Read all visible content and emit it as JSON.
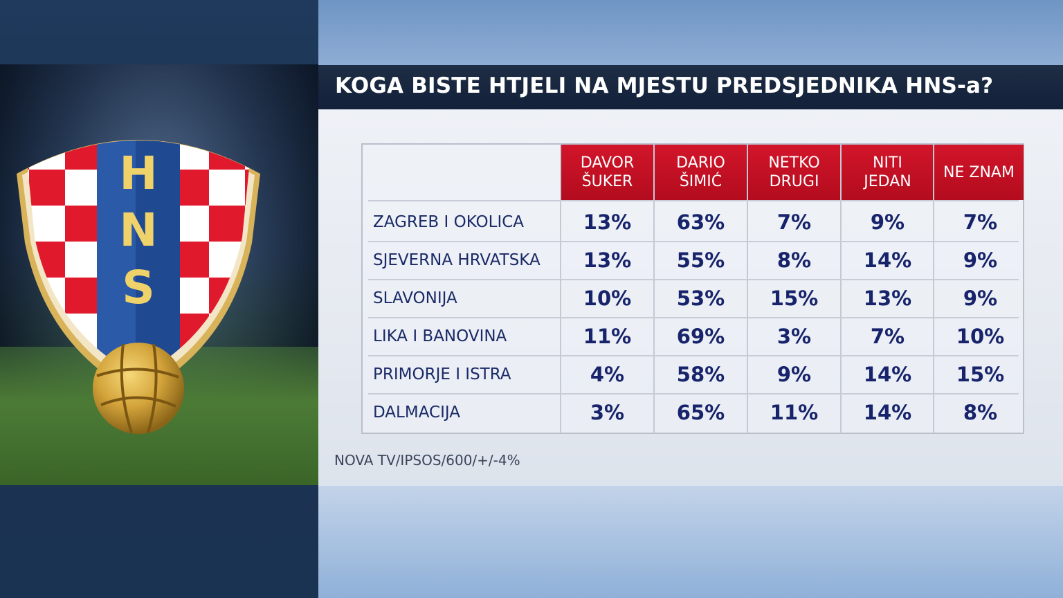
{
  "title": "KOGA BISTE HTJELI NA MJESTU PREDSJEDNIKA HNS-a?",
  "logo": {
    "text": "HNS",
    "icon": "hns-crest-icon"
  },
  "source": "NOVA TV/IPSOS/600/+/-4%",
  "colors": {
    "header_red": "#c81024",
    "value_blue": "#17236a",
    "title_bg": "#1a2a40"
  },
  "chart_data": {
    "type": "table",
    "title": "KOGA BISTE HTJELI NA MJESTU PREDSJEDNIKA HNS-a?",
    "columns": [
      "DAVOR\nŠUKER",
      "DARIO\nŠIMIĆ",
      "NETKO\nDRUGI",
      "NITI\nJEDAN",
      "NE ZNAM"
    ],
    "rows": [
      {
        "label": "ZAGREB I OKOLICA",
        "values": [
          "13%",
          "63%",
          "7%",
          "9%",
          "7%"
        ]
      },
      {
        "label": "SJEVERNA HRVATSKA",
        "values": [
          "13%",
          "55%",
          "8%",
          "14%",
          "9%"
        ]
      },
      {
        "label": "SLAVONIJA",
        "values": [
          "10%",
          "53%",
          "15%",
          "13%",
          "9%"
        ]
      },
      {
        "label": "LIKA I BANOVINA",
        "values": [
          "11%",
          "69%",
          "3%",
          "7%",
          "10%"
        ]
      },
      {
        "label": "PRIMORJE I ISTRA",
        "values": [
          "4%",
          "58%",
          "9%",
          "14%",
          "15%"
        ]
      },
      {
        "label": "DALMACIJA",
        "values": [
          "3%",
          "65%",
          "11%",
          "14%",
          "8%"
        ]
      }
    ]
  }
}
